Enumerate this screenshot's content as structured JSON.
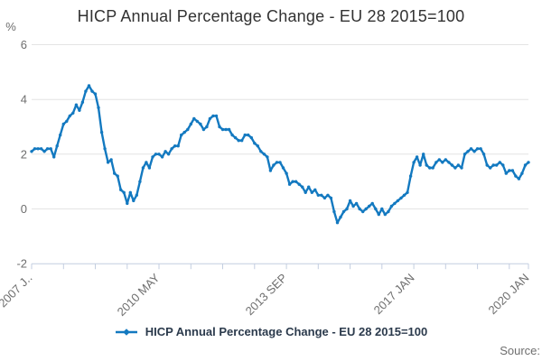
{
  "page": {
    "title": "HICP Annual Percentage Change - EU 28 2015=100"
  },
  "legend": {
    "label": "HICP Annual Percentage Change - EU 28 2015=100"
  },
  "footer": {
    "source_label": "Source:"
  },
  "colors": {
    "line": "#1379C0",
    "axis": "#C3CEE0",
    "grid": "#E4E4E4",
    "muted_text": "#6E6E6E",
    "title_text": "#323232",
    "legend_text": "#2B3A4C"
  },
  "axes": {
    "y_unit_label": "%",
    "y_ticks": [
      6,
      4,
      2,
      0,
      -2
    ],
    "x_tick_months": [
      0,
      10,
      20,
      30,
      40,
      50,
      60,
      70,
      80,
      90,
      100,
      110,
      120,
      130,
      140,
      150,
      156
    ],
    "x_labels": [
      {
        "m": 0,
        "label": "2007 J.."
      },
      {
        "m": 40,
        "label": "2010 MAY"
      },
      {
        "m": 80,
        "label": "2013 SEP"
      },
      {
        "m": 120,
        "label": "2017 JAN"
      },
      {
        "m": 156,
        "label": "2020 JAN"
      }
    ]
  },
  "chart_data": {
    "type": "line",
    "title": "HICP Annual Percentage Change - EU 28 2015=100",
    "xlabel": "",
    "ylabel": "%",
    "ylim": [
      -2,
      6
    ],
    "grid": "horizontal-only",
    "legend_position": "bottom-center",
    "x_start": "2007-01",
    "x_end": "2020-01",
    "x_frequency": "monthly",
    "x_tick_labels": [
      "2007 J..",
      "2010 MAY",
      "2013 SEP",
      "2017 JAN",
      "2020 JAN"
    ],
    "series": [
      {
        "name": "HICP Annual Percentage Change - EU 28 2015=100",
        "values": [
          2.1,
          2.2,
          2.2,
          2.2,
          2.1,
          2.2,
          2.2,
          1.9,
          2.3,
          2.7,
          3.1,
          3.2,
          3.4,
          3.5,
          3.8,
          3.6,
          3.9,
          4.3,
          4.5,
          4.3,
          4.2,
          3.7,
          2.8,
          2.2,
          1.7,
          1.8,
          1.3,
          1.2,
          0.7,
          0.6,
          0.2,
          0.6,
          0.3,
          0.5,
          1.0,
          1.5,
          1.7,
          1.5,
          1.9,
          2.0,
          2.0,
          1.9,
          2.1,
          2.0,
          2.2,
          2.3,
          2.3,
          2.7,
          2.8,
          2.9,
          3.1,
          3.3,
          3.2,
          3.1,
          2.9,
          3.0,
          3.3,
          3.4,
          3.4,
          3.0,
          2.9,
          2.9,
          2.9,
          2.7,
          2.6,
          2.5,
          2.5,
          2.7,
          2.7,
          2.6,
          2.4,
          2.3,
          2.1,
          2.0,
          1.9,
          1.4,
          1.6,
          1.7,
          1.7,
          1.5,
          1.3,
          0.9,
          1.0,
          1.0,
          0.9,
          0.8,
          0.6,
          0.8,
          0.6,
          0.7,
          0.5,
          0.5,
          0.4,
          0.5,
          0.4,
          -0.1,
          -0.5,
          -0.3,
          -0.1,
          0.0,
          0.3,
          0.1,
          0.2,
          0.0,
          -0.1,
          0.0,
          0.1,
          0.2,
          0.0,
          -0.2,
          0.0,
          -0.2,
          -0.1,
          0.1,
          0.2,
          0.3,
          0.4,
          0.5,
          0.6,
          1.2,
          1.7,
          1.9,
          1.6,
          2.0,
          1.6,
          1.5,
          1.5,
          1.7,
          1.8,
          1.7,
          1.8,
          1.7,
          1.6,
          1.5,
          1.6,
          1.5,
          2.0,
          2.1,
          2.2,
          2.1,
          2.2,
          2.2,
          2.0,
          1.6,
          1.5,
          1.6,
          1.6,
          1.7,
          1.6,
          1.3,
          1.4,
          1.4,
          1.2,
          1.1,
          1.3,
          1.6,
          1.7
        ]
      }
    ]
  }
}
